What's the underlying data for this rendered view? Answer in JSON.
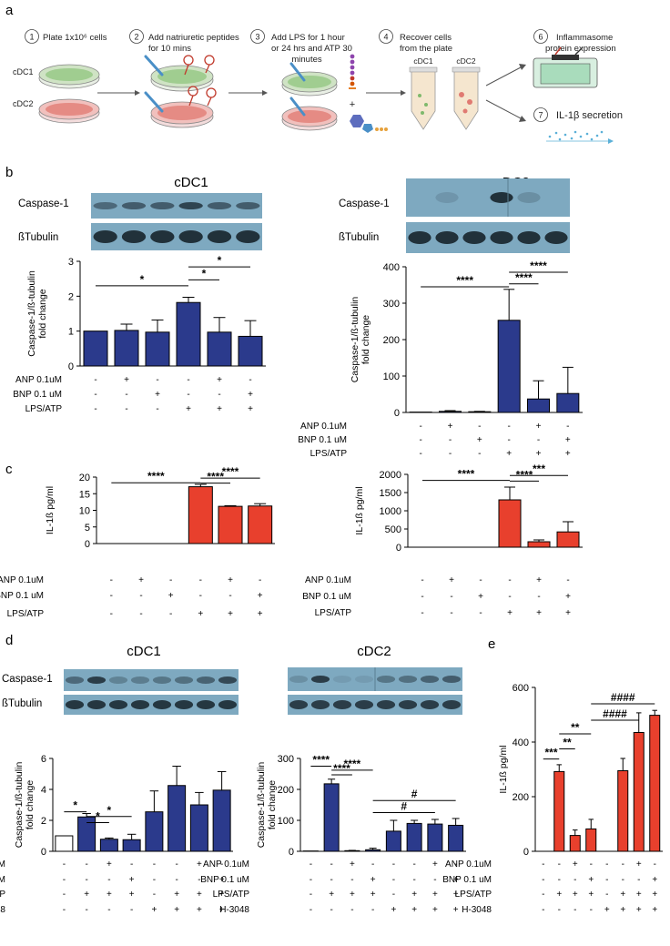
{
  "panels": {
    "a": "a",
    "b": "b",
    "c": "c",
    "d": "d",
    "e": "e"
  },
  "workflow": {
    "steps": [
      {
        "num": "1",
        "text": [
          "Plate 1x10⁶ cells"
        ]
      },
      {
        "num": "2",
        "text": [
          "Add natriuretic peptides",
          "for 10 mins"
        ]
      },
      {
        "num": "3",
        "text": [
          "Add LPS for 1 hour",
          "or 24 hrs and ATP 30",
          "minutes"
        ]
      },
      {
        "num": "4",
        "text": [
          "Recover cells",
          "from the plate"
        ]
      },
      {
        "num": "6",
        "text": [
          "Inflammasome",
          "protein expression"
        ]
      },
      {
        "num": "7",
        "text": [
          "IL-1β secretion"
        ]
      }
    ],
    "dish_labels": [
      "cDC1",
      "cDC2"
    ],
    "tube_labels": [
      "cDC1",
      "cDC2"
    ],
    "plus": "+",
    "colors": {
      "cdc1": "#7fb96c",
      "cdc2": "#e07a72",
      "blue": "#5bb0d8"
    }
  },
  "blots": {
    "b_left": {
      "title": "cDC1",
      "rows": [
        "Caspase-1",
        "ßTubulin"
      ]
    },
    "b_right": {
      "title": "cDC2",
      "rows": [
        "Caspase-1",
        "ßTubulin"
      ]
    },
    "d_left": {
      "title": "cDC1",
      "rows": [
        "Caspase-1",
        "ßTubulin"
      ]
    },
    "d_right": {
      "title": "cDC2"
    }
  },
  "conditions": {
    "ANP 0.1uM": [
      "-",
      "+",
      "-",
      "-",
      "+",
      "-"
    ],
    "BNP 0.1 uM": [
      "-",
      "-",
      "+",
      "-",
      "-",
      "+"
    ],
    "LPS/ATP": [
      "-",
      "-",
      "-",
      "+",
      "+",
      "+"
    ]
  },
  "conditions_d": {
    "ANP 0.1uM": [
      "-",
      "-",
      "+",
      "-",
      "-",
      "-",
      "+",
      "-"
    ],
    "BNP 0.1 uM": [
      "-",
      "-",
      "-",
      "+",
      "-",
      "-",
      "-",
      "+"
    ],
    "LPS/ATP": [
      "-",
      "+",
      "+",
      "+",
      "-",
      "+",
      "+",
      "+"
    ],
    "H-3048": [
      "-",
      "-",
      "-",
      "-",
      "+",
      "+",
      "+",
      "+"
    ]
  },
  "chart_data": [
    {
      "id": "b_left",
      "type": "bar",
      "title": "",
      "ylabel": "Caspase-1/ß-tubulin fold change",
      "ylim": [
        0,
        3
      ],
      "ticks": [
        0,
        1,
        2,
        3
      ],
      "values": [
        1.0,
        1.02,
        0.97,
        1.82,
        0.97,
        0.85
      ],
      "errors": [
        0,
        0.18,
        0.35,
        0.15,
        0.42,
        0.45
      ],
      "color": "#2b3a8c",
      "brackets": [
        {
          "from": 0,
          "to": 3,
          "y": 2.3,
          "label": "*"
        },
        {
          "from": 3,
          "to": 4,
          "y": 2.47,
          "label": "*"
        },
        {
          "from": 3,
          "to": 5,
          "y": 2.84,
          "label": "*"
        }
      ]
    },
    {
      "id": "b_right",
      "type": "bar",
      "ylabel": "Caspase-1/ß-tubulin fold change",
      "ylim": [
        0,
        400
      ],
      "ticks": [
        0,
        100,
        200,
        300,
        400
      ],
      "values": [
        1,
        3,
        2,
        253,
        37,
        52
      ],
      "errors": [
        0,
        2,
        1,
        85,
        50,
        72
      ],
      "color": "#2b3a8c",
      "brackets": [
        {
          "from": 0,
          "to": 3,
          "y": 345,
          "label": "****"
        },
        {
          "from": 3,
          "to": 4,
          "y": 353,
          "label": "****"
        },
        {
          "from": 3,
          "to": 5,
          "y": 385,
          "label": "****"
        }
      ]
    },
    {
      "id": "c_left",
      "type": "bar",
      "ylabel": "IL-1ß pg/ml",
      "ylim": [
        0,
        20
      ],
      "ticks": [
        0,
        5,
        10,
        15,
        20
      ],
      "values": [
        0,
        0,
        0,
        17.1,
        11.2,
        11.3
      ],
      "errors": [
        0,
        0,
        0,
        0.7,
        0.2,
        0.7
      ],
      "color": "#e8402d",
      "brackets": [
        {
          "from": 0,
          "to": 3,
          "y": 18.3,
          "label": "****"
        },
        {
          "from": 3,
          "to": 4,
          "y": 18.2,
          "label": "****"
        },
        {
          "from": 3,
          "to": 5,
          "y": 19.7,
          "label": "****"
        }
      ]
    },
    {
      "id": "c_right",
      "type": "bar",
      "ylabel": "IL-1ß pg/ml",
      "ylim": [
        0,
        2000
      ],
      "ticks": [
        0,
        500,
        1000,
        1500,
        2000
      ],
      "values": [
        0,
        0,
        0,
        1300,
        150,
        420
      ],
      "errors": [
        0,
        0,
        0,
        350,
        50,
        280
      ],
      "color": "#e8402d",
      "brackets": [
        {
          "from": 0,
          "to": 3,
          "y": 1835,
          "label": "****"
        },
        {
          "from": 3,
          "to": 4,
          "y": 1815,
          "label": "****"
        },
        {
          "from": 3,
          "to": 5,
          "y": 1970,
          "label": "***"
        }
      ]
    },
    {
      "id": "d_left",
      "type": "bar",
      "ylabel": "Caspase-1/ß-tubulin fold change",
      "ylim": [
        0,
        6
      ],
      "ticks": [
        0,
        2,
        4,
        6
      ],
      "values": [
        1.0,
        2.22,
        0.78,
        0.75,
        2.55,
        4.25,
        3.0,
        3.95
      ],
      "errors": [
        0,
        0.22,
        0.08,
        0.35,
        1.35,
        1.25,
        0.8,
        1.2
      ],
      "color": "#2b3a8c",
      "first_white": true,
      "brackets": [
        {
          "from": 0,
          "to": 1,
          "y": 2.55,
          "label": "*"
        },
        {
          "from": 1,
          "to": 2,
          "y": 1.85,
          "label": "*"
        },
        {
          "from": 1,
          "to": 3,
          "y": 2.25,
          "label": "*"
        }
      ]
    },
    {
      "id": "d_right",
      "type": "bar",
      "ylabel": "Caspase-1/ß-tubulin fold change",
      "ylim": [
        0,
        300
      ],
      "ticks": [
        0,
        100,
        200,
        300
      ],
      "values": [
        1,
        218,
        2,
        5,
        65,
        90,
        88,
        84
      ],
      "errors": [
        0,
        15,
        1,
        5,
        35,
        10,
        15,
        22
      ],
      "color": "#2b3a8c",
      "brackets": [
        {
          "from": 0,
          "to": 1,
          "y": 275,
          "label": "****"
        },
        {
          "from": 1,
          "to": 2,
          "y": 247,
          "label": "****"
        },
        {
          "from": 1,
          "to": 3,
          "y": 262,
          "label": "****"
        },
        {
          "from": 3,
          "to": 6,
          "y": 125,
          "label": "#"
        },
        {
          "from": 3,
          "to": 7,
          "y": 164,
          "label": "#"
        }
      ]
    },
    {
      "id": "e",
      "type": "bar",
      "ylabel": "IL-1ß pg/ml",
      "ylim": [
        0,
        600
      ],
      "ticks": [
        0,
        200,
        400,
        600
      ],
      "values": [
        0,
        292,
        58,
        82,
        0,
        295,
        435,
        498
      ],
      "errors": [
        0,
        25,
        20,
        35,
        0,
        45,
        72,
        18
      ],
      "color": "#e8402d",
      "brackets": [
        {
          "from": 0,
          "to": 1,
          "y": 338,
          "label": "***"
        },
        {
          "from": 1,
          "to": 2,
          "y": 375,
          "label": "**"
        },
        {
          "from": 1,
          "to": 3,
          "y": 430,
          "label": "**"
        },
        {
          "from": 3,
          "to": 6,
          "y": 480,
          "label": "####"
        },
        {
          "from": 3,
          "to": 7,
          "y": 540,
          "label": "####"
        }
      ]
    }
  ]
}
